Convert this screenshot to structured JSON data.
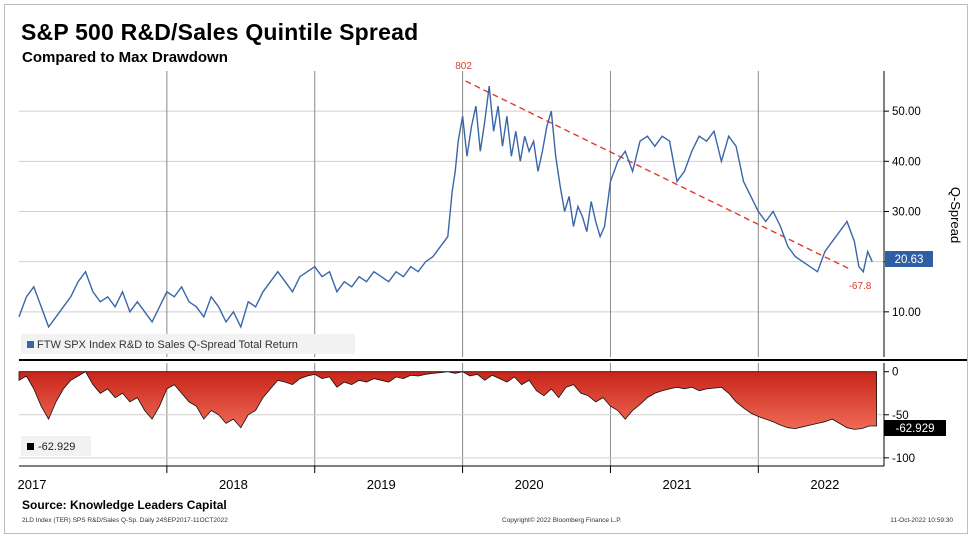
{
  "title": "S&P 500 R&D/Sales Quintile Spread",
  "subtitle": "Compared to Max Drawdown",
  "source": "Source: Knowledge Leaders Capital",
  "footer": {
    "left": "2LD Index (TER) SPS R&D/Sales Q-Sp. Daily 24SEP2017-11OCT2022",
    "center": "Copyright© 2022 Bloomberg Finance L.P.",
    "right": "11-Oct-2022 10:59:30"
  },
  "colors": {
    "line": "#3a66a8",
    "trend": "#e03c2c",
    "drawdown": "#e0301e",
    "label_bg": "#2e5fa3"
  },
  "chart_data": [
    {
      "type": "line",
      "name": "upper",
      "ylabel": "Q-Spread",
      "ylim": [
        1,
        58
      ],
      "yticks": [
        10,
        20,
        30,
        40,
        50
      ],
      "ytick_labels": [
        "10.00",
        "20.00",
        "30.00",
        "40.00",
        "50.00"
      ],
      "xlim": [
        2017.0,
        2022.85
      ],
      "x_tick_labels": [
        "2017",
        "2018",
        "2019",
        "2020",
        "2021",
        "2022"
      ],
      "series": [
        {
          "name": "FTW SPX Index R&D to Sales Q-Spread Total Return",
          "x": [
            2017.0,
            2017.05,
            2017.1,
            2017.15,
            2017.2,
            2017.25,
            2017.3,
            2017.35,
            2017.4,
            2017.45,
            2017.5,
            2017.55,
            2017.6,
            2017.65,
            2017.7,
            2017.75,
            2017.8,
            2017.85,
            2017.9,
            2017.95,
            2018.0,
            2018.05,
            2018.1,
            2018.15,
            2018.2,
            2018.25,
            2018.3,
            2018.35,
            2018.4,
            2018.45,
            2018.5,
            2018.55,
            2018.6,
            2018.65,
            2018.7,
            2018.75,
            2018.8,
            2018.85,
            2018.9,
            2018.95,
            2019.0,
            2019.05,
            2019.1,
            2019.15,
            2019.2,
            2019.25,
            2019.3,
            2019.35,
            2019.4,
            2019.45,
            2019.5,
            2019.55,
            2019.6,
            2019.65,
            2019.7,
            2019.75,
            2019.8,
            2019.85,
            2019.9,
            2019.93,
            2019.95,
            2019.97,
            2020.0,
            2020.03,
            2020.06,
            2020.09,
            2020.12,
            2020.15,
            2020.18,
            2020.21,
            2020.24,
            2020.27,
            2020.3,
            2020.33,
            2020.36,
            2020.39,
            2020.42,
            2020.45,
            2020.48,
            2020.51,
            2020.54,
            2020.57,
            2020.6,
            2020.63,
            2020.66,
            2020.69,
            2020.72,
            2020.75,
            2020.78,
            2020.81,
            2020.84,
            2020.87,
            2020.9,
            2020.93,
            2020.96,
            2021.0,
            2021.05,
            2021.1,
            2021.15,
            2021.2,
            2021.25,
            2021.3,
            2021.35,
            2021.4,
            2021.45,
            2021.5,
            2021.55,
            2021.6,
            2021.65,
            2021.7,
            2021.75,
            2021.8,
            2021.85,
            2021.9,
            2021.95,
            2022.0,
            2022.05,
            2022.1,
            2022.15,
            2022.2,
            2022.25,
            2022.3,
            2022.35,
            2022.4,
            2022.45,
            2022.5,
            2022.55,
            2022.6,
            2022.65,
            2022.68,
            2022.71,
            2022.74,
            2022.77
          ],
          "y": [
            9,
            13,
            15,
            11,
            7,
            9,
            11,
            13,
            16,
            18,
            14,
            12,
            13,
            11,
            14,
            10,
            12,
            10,
            8,
            11,
            14,
            13,
            15,
            12,
            11,
            9,
            13,
            11,
            8,
            10,
            7,
            12,
            11,
            14,
            16,
            18,
            16,
            14,
            17,
            18,
            19,
            17,
            18,
            14,
            16,
            15,
            17,
            16,
            18,
            17,
            16,
            18,
            17,
            19,
            18,
            20,
            21,
            23,
            25,
            34,
            38,
            44,
            49,
            41,
            47,
            51,
            42,
            48,
            55,
            46,
            51,
            43,
            49,
            41,
            46,
            40,
            45,
            42,
            44,
            38,
            42,
            47,
            50,
            41,
            35,
            30,
            33,
            27,
            31,
            29,
            26,
            32,
            28,
            25,
            27,
            36,
            40,
            42,
            38,
            44,
            45,
            43,
            45,
            44,
            36,
            38,
            42,
            45,
            44,
            46,
            40,
            45,
            43,
            36,
            33,
            30,
            28,
            30,
            27,
            23,
            21,
            20,
            19,
            18,
            22,
            24,
            26,
            28,
            24,
            19,
            18,
            22,
            20
          ]
        }
      ],
      "trendline": {
        "x": [
          2020.02,
          2022.62
        ],
        "y": [
          56,
          18.5
        ]
      },
      "annotations": {
        "peak_label": "802",
        "trough_label": "-67.8",
        "last_value": "20.63"
      }
    },
    {
      "type": "area",
      "name": "lower",
      "ylim": [
        -106,
        2
      ],
      "yticks": [
        0,
        -50,
        -100
      ],
      "ytick_labels": [
        "0",
        "-50",
        "-100"
      ],
      "x": [
        2017.0,
        2017.05,
        2017.1,
        2017.15,
        2017.2,
        2017.25,
        2017.3,
        2017.35,
        2017.4,
        2017.45,
        2017.5,
        2017.55,
        2017.6,
        2017.65,
        2017.7,
        2017.75,
        2017.8,
        2017.85,
        2017.9,
        2017.95,
        2018.0,
        2018.05,
        2018.1,
        2018.15,
        2018.2,
        2018.25,
        2018.3,
        2018.35,
        2018.4,
        2018.45,
        2018.5,
        2018.55,
        2018.6,
        2018.65,
        2018.7,
        2018.75,
        2018.8,
        2018.85,
        2018.9,
        2018.95,
        2019.0,
        2019.05,
        2019.1,
        2019.15,
        2019.2,
        2019.25,
        2019.3,
        2019.35,
        2019.4,
        2019.45,
        2019.5,
        2019.55,
        2019.6,
        2019.65,
        2019.7,
        2019.75,
        2019.8,
        2019.85,
        2019.9,
        2019.95,
        2020.0,
        2020.05,
        2020.1,
        2020.15,
        2020.2,
        2020.25,
        2020.3,
        2020.35,
        2020.4,
        2020.45,
        2020.5,
        2020.55,
        2020.6,
        2020.65,
        2020.7,
        2020.75,
        2020.8,
        2020.85,
        2020.9,
        2020.95,
        2021.0,
        2021.05,
        2021.1,
        2021.15,
        2021.2,
        2021.25,
        2021.3,
        2021.35,
        2021.4,
        2021.45,
        2021.5,
        2021.55,
        2021.6,
        2021.65,
        2021.7,
        2021.75,
        2021.8,
        2021.85,
        2021.9,
        2021.95,
        2022.0,
        2022.05,
        2022.1,
        2022.15,
        2022.2,
        2022.25,
        2022.3,
        2022.35,
        2022.4,
        2022.45,
        2022.5,
        2022.55,
        2022.6,
        2022.65,
        2022.7,
        2022.75,
        2022.8
      ],
      "y": [
        -10,
        -5,
        -20,
        -40,
        -55,
        -35,
        -20,
        -10,
        -5,
        0,
        -15,
        -25,
        -20,
        -30,
        -25,
        -35,
        -30,
        -45,
        -55,
        -40,
        -20,
        -15,
        -25,
        -35,
        -40,
        -55,
        -45,
        -50,
        -60,
        -55,
        -65,
        -50,
        -45,
        -30,
        -20,
        -10,
        -12,
        -15,
        -8,
        -5,
        -3,
        -8,
        -6,
        -18,
        -12,
        -15,
        -10,
        -12,
        -8,
        -10,
        -12,
        -6,
        -8,
        -4,
        -5,
        -3,
        -2,
        -1,
        0,
        -2,
        0,
        -5,
        -3,
        -10,
        -4,
        -8,
        -12,
        -6,
        -15,
        -10,
        -22,
        -28,
        -20,
        -30,
        -18,
        -15,
        -25,
        -28,
        -35,
        -30,
        -40,
        -45,
        -55,
        -45,
        -38,
        -30,
        -25,
        -22,
        -20,
        -18,
        -20,
        -18,
        -22,
        -20,
        -19,
        -18,
        -25,
        -35,
        -42,
        -48,
        -52,
        -55,
        -58,
        -62,
        -65,
        -66,
        -64,
        -62,
        -60,
        -58,
        -55,
        -60,
        -65,
        -67,
        -66,
        -63,
        -63
      ],
      "series_label": "-62.929",
      "last_value": "-62.929"
    }
  ]
}
